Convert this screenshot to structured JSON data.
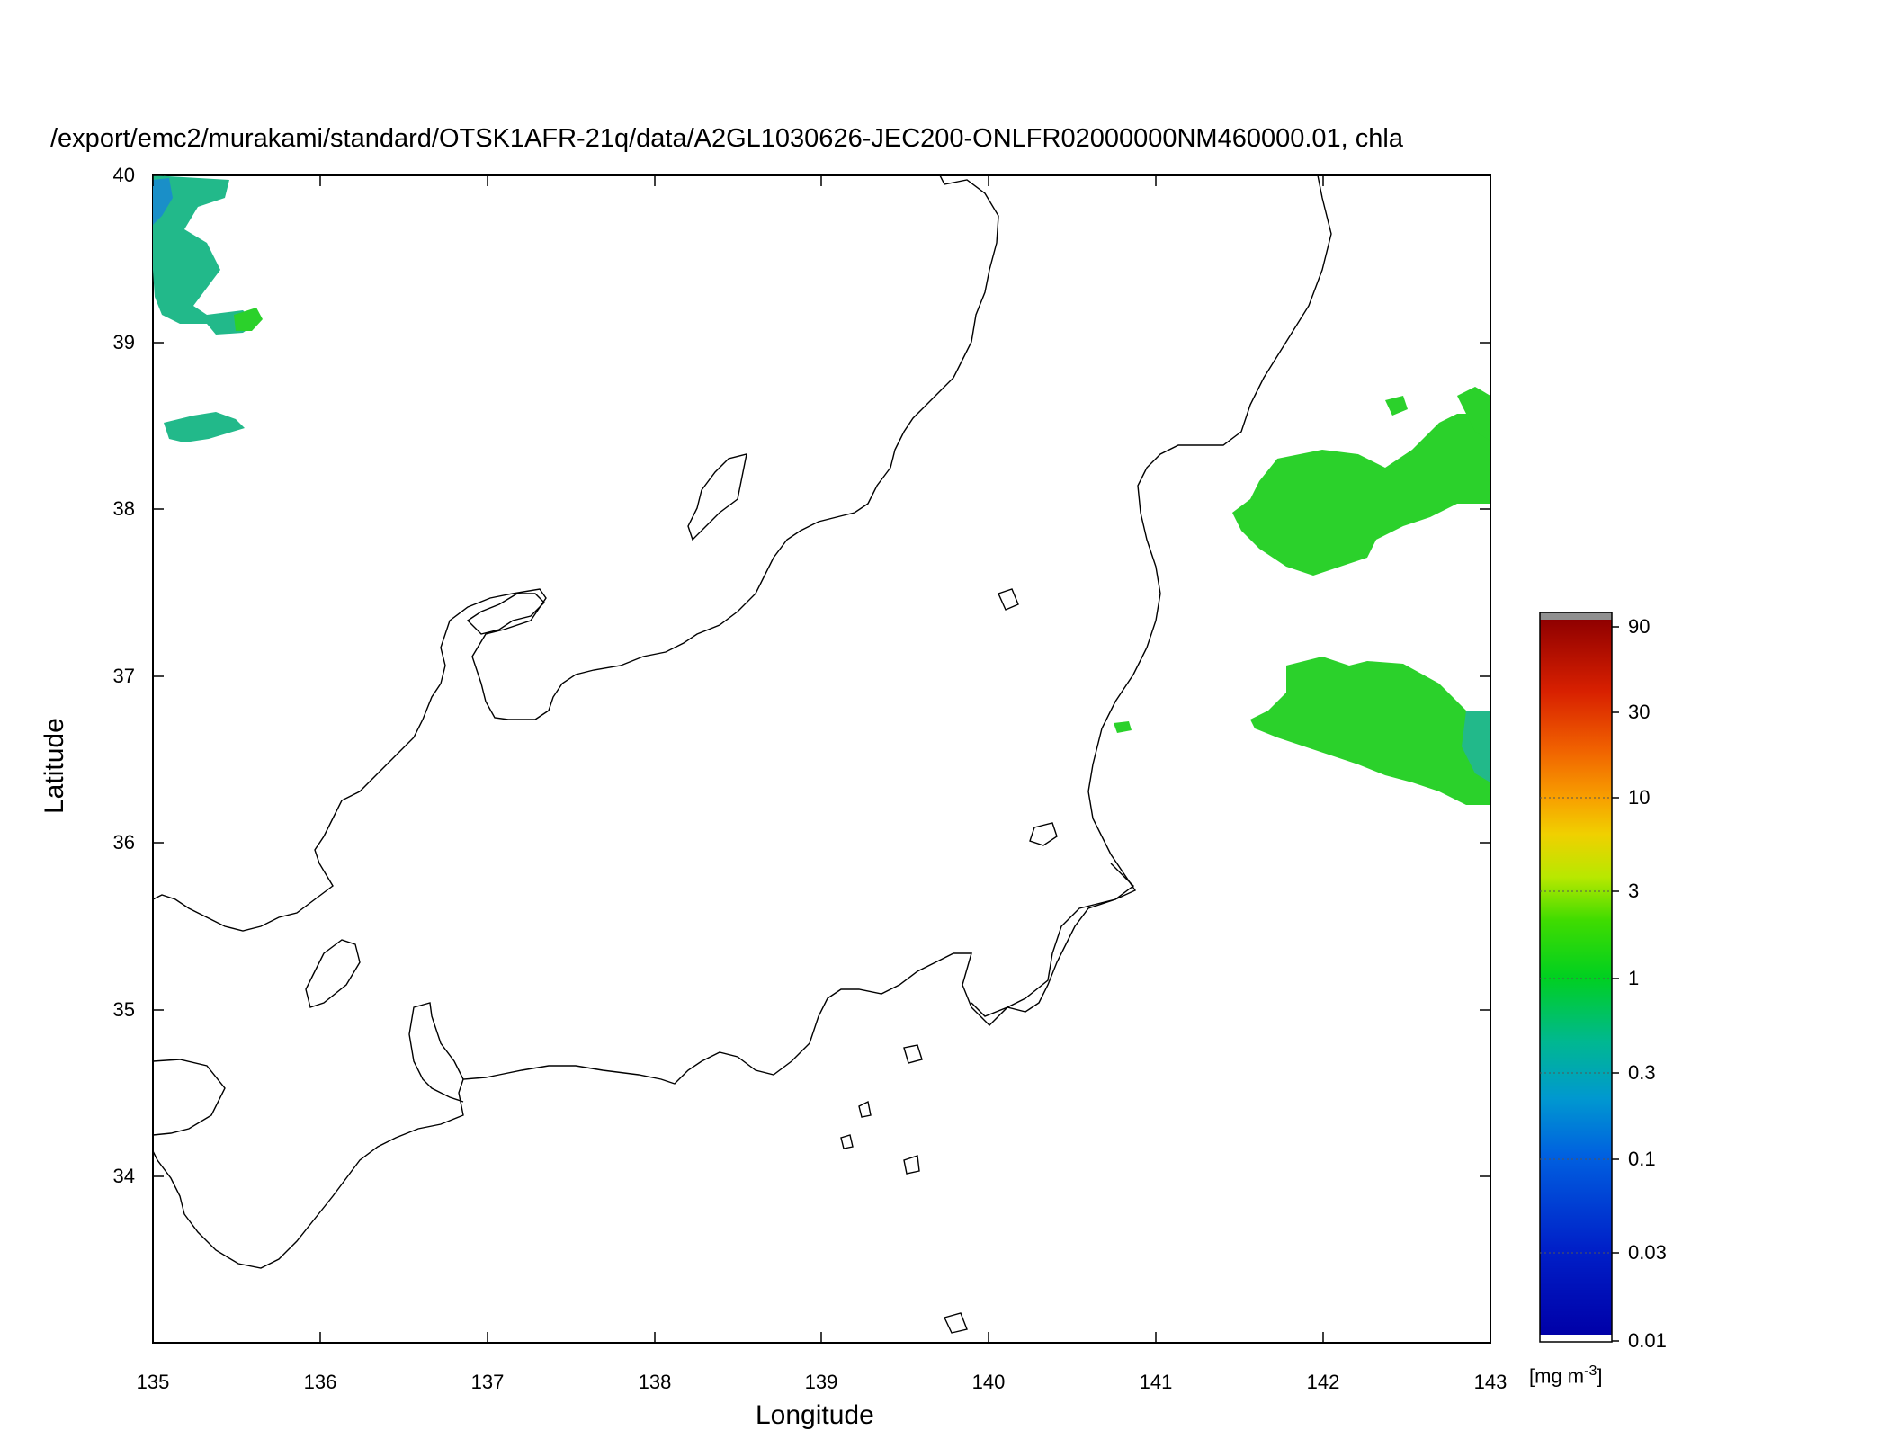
{
  "title": "/export/emc2/murakami/standard/OTSK1AFR-21q/data/A2GL1030626-JEC200-ONLFR02000000NM460000.01, chla",
  "x_axis": {
    "label": "Longitude",
    "range": [
      135,
      143
    ],
    "ticks": [
      "135",
      "136",
      "137",
      "138",
      "139",
      "140",
      "141",
      "142",
      "143"
    ]
  },
  "y_axis": {
    "label": "Latitude",
    "range": [
      33,
      40
    ],
    "ticks": [
      "34",
      "35",
      "36",
      "37",
      "38",
      "39",
      "40"
    ]
  },
  "colorbar": {
    "scale": "log",
    "range": [
      0.01,
      90
    ],
    "ticks": [
      "90",
      "30",
      "10",
      "3",
      "1",
      "0.3",
      "0.1",
      "0.03",
      "0.01"
    ],
    "unit_prefix": "[mg m",
    "unit_exp": "-3",
    "unit_suffix": "]",
    "colors": [
      "#0000a8",
      "#0038e0",
      "#0078d8",
      "#00a8b8",
      "#00c060",
      "#00d800",
      "#80e000",
      "#d0e000",
      "#f0c000",
      "#f08000",
      "#e04000",
      "#c00000",
      "#900000"
    ]
  },
  "colors": {
    "coastline": "#000000",
    "chla_green": "#2bd12b",
    "chla_teal": "#22b98a",
    "chla_blue": "#1a8fc8"
  }
}
